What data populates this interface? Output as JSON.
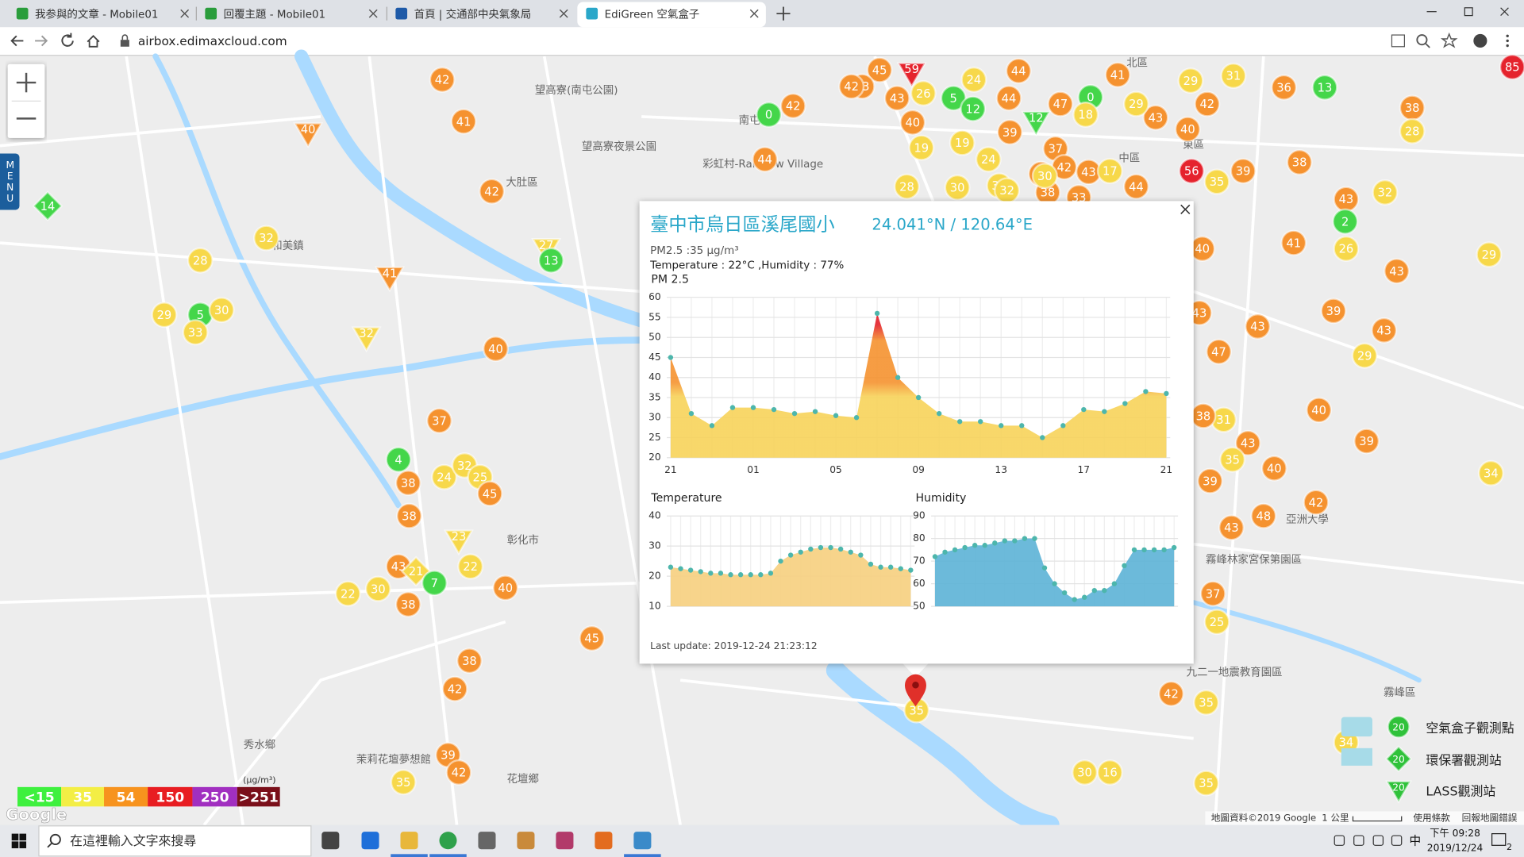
{
  "browser": {
    "tabs": [
      "我参與的文章 - Mobile01",
      "回覆主題 - Mobile01",
      "首頁 | 交通部中央氣象局",
      "EdiGreen 空氣盒子"
    ],
    "url": "airbox.edimaxcloud.com"
  },
  "map": {
    "menu": "MENU",
    "places": [
      "大肚區",
      "和美鎮",
      "彰化市",
      "花壇鄉",
      "秀水鄉",
      "望高寮(南屯公園)",
      "望高寮夜景公園",
      "彩虹村-Rainbow Village",
      "中區",
      "東區",
      "北區",
      "霧峰區",
      "九二一地震教育園區",
      "霧峰林家宮保第園區",
      "亞洲大學",
      "茉莉花壇夢想館",
      "南屯"
    ],
    "markers": [
      {
        "value": 42,
        "color": "#f5922f"
      },
      {
        "value": 41,
        "color": "#f5922f"
      },
      {
        "value": 40,
        "color": "#f5922f",
        "shape": "triangle"
      },
      {
        "value": 14,
        "color": "#44d64a",
        "shape": "diamond"
      },
      {
        "value": 42,
        "color": "#f5922f"
      },
      {
        "value": 32,
        "color": "#f7d84a"
      },
      {
        "value": 28,
        "color": "#f7d84a"
      },
      {
        "value": 27,
        "color": "#f7d84a",
        "shape": "triangle"
      },
      {
        "value": 13,
        "color": "#44d64a"
      },
      {
        "value": 41,
        "color": "#f5922f",
        "shape": "triangle"
      },
      {
        "value": 29,
        "color": "#f7d84a"
      },
      {
        "value": 5,
        "color": "#44d64a"
      },
      {
        "value": 30,
        "color": "#f7d84a"
      },
      {
        "value": 33,
        "color": "#f7d84a"
      },
      {
        "value": 32,
        "color": "#f7d84a",
        "shape": "triangle"
      },
      {
        "value": 40,
        "color": "#f5922f"
      },
      {
        "value": 37,
        "color": "#f5922f"
      },
      {
        "value": 4,
        "color": "#44d64a"
      },
      {
        "value": 38,
        "color": "#f5922f"
      },
      {
        "value": 24,
        "color": "#f7d84a"
      },
      {
        "value": 32,
        "color": "#f7d84a"
      },
      {
        "value": 25,
        "color": "#f7d84a"
      },
      {
        "value": 45,
        "color": "#f5922f"
      },
      {
        "value": 38,
        "color": "#f5922f"
      },
      {
        "value": 23,
        "color": "#f7d84a",
        "shape": "triangle"
      },
      {
        "value": 22,
        "color": "#f7d84a"
      },
      {
        "value": 43,
        "color": "#f5922f"
      },
      {
        "value": 21,
        "color": "#f7d84a",
        "shape": "diamond"
      },
      {
        "value": 7,
        "color": "#44d64a"
      },
      {
        "value": 40,
        "color": "#f5922f"
      },
      {
        "value": 22,
        "color": "#f7d84a"
      },
      {
        "value": 30,
        "color": "#f7d84a"
      },
      {
        "value": 38,
        "color": "#f5922f"
      },
      {
        "value": 45,
        "color": "#f5922f"
      },
      {
        "value": 38,
        "color": "#f5922f"
      },
      {
        "value": 42,
        "color": "#f5922f"
      },
      {
        "value": 39,
        "color": "#f5922f"
      },
      {
        "value": 42,
        "color": "#f5922f"
      },
      {
        "value": 35,
        "color": "#f7d84a"
      },
      {
        "value": 0,
        "color": "#44d64a"
      },
      {
        "value": 42,
        "color": "#f5922f"
      },
      {
        "value": 44,
        "color": "#f5922f"
      },
      {
        "value": 59,
        "color": "#e5232d",
        "shape": "triangle"
      },
      {
        "value": 45,
        "color": "#f5922f"
      },
      {
        "value": 43,
        "color": "#f5922f"
      },
      {
        "value": 43,
        "color": "#f5922f"
      },
      {
        "value": 26,
        "color": "#f7d84a"
      },
      {
        "value": 5,
        "color": "#44d64a"
      },
      {
        "value": 12,
        "color": "#44d64a"
      },
      {
        "value": 24,
        "color": "#f7d84a"
      },
      {
        "value": 44,
        "color": "#f5922f"
      },
      {
        "value": 44,
        "color": "#f5922f"
      },
      {
        "value": 47,
        "color": "#f5922f"
      },
      {
        "value": 0,
        "color": "#44d64a"
      },
      {
        "value": 41,
        "color": "#f5922f"
      },
      {
        "value": 18,
        "color": "#f7d84a"
      },
      {
        "value": 12,
        "color": "#44d64a",
        "shape": "triangle"
      },
      {
        "value": 40,
        "color": "#f5922f"
      },
      {
        "value": 19,
        "color": "#f7d84a"
      },
      {
        "value": 19,
        "color": "#f7d84a"
      },
      {
        "value": 39,
        "color": "#f5922f"
      },
      {
        "value": 37,
        "color": "#f5922f"
      },
      {
        "value": 24,
        "color": "#f7d84a"
      },
      {
        "value": 42,
        "color": "#f5922f"
      },
      {
        "value": 42,
        "color": "#f5922f"
      },
      {
        "value": 43,
        "color": "#f5922f"
      },
      {
        "value": 17,
        "color": "#f7d84a"
      },
      {
        "value": 44,
        "color": "#f5922f"
      },
      {
        "value": 38,
        "color": "#f5922f"
      },
      {
        "value": 30,
        "color": "#f7d84a"
      },
      {
        "value": 32,
        "color": "#f7d84a"
      },
      {
        "value": 30,
        "color": "#f7d84a"
      },
      {
        "value": 28,
        "color": "#f7d84a"
      },
      {
        "value": 33,
        "color": "#f5922f"
      },
      {
        "value": 32,
        "color": "#f7d84a"
      },
      {
        "value": 29,
        "color": "#f7d84a"
      },
      {
        "value": 31,
        "color": "#f7d84a"
      },
      {
        "value": 42,
        "color": "#f5922f"
      },
      {
        "value": 43,
        "color": "#f5922f"
      },
      {
        "value": 29,
        "color": "#f7d84a"
      },
      {
        "value": 40,
        "color": "#f5922f"
      },
      {
        "value": 36,
        "color": "#f5922f"
      },
      {
        "value": 13,
        "color": "#44d64a"
      },
      {
        "value": 38,
        "color": "#f5922f"
      },
      {
        "value": 28,
        "color": "#f7d84a"
      },
      {
        "value": 38,
        "color": "#f5922f"
      },
      {
        "value": 56,
        "color": "#e5232d"
      },
      {
        "value": 35,
        "color": "#f7d84a"
      },
      {
        "value": 39,
        "color": "#f5922f"
      },
      {
        "value": 43,
        "color": "#f5922f"
      },
      {
        "value": 32,
        "color": "#f7d84a"
      },
      {
        "value": 2,
        "color": "#44d64a"
      },
      {
        "value": 41,
        "color": "#f5922f"
      },
      {
        "value": 26,
        "color": "#f7d84a"
      },
      {
        "value": 43,
        "color": "#f5922f"
      },
      {
        "value": 29,
        "color": "#f7d84a"
      },
      {
        "value": 40,
        "color": "#f5922f"
      },
      {
        "value": 39,
        "color": "#f5922f"
      },
      {
        "value": 43,
        "color": "#f5922f"
      },
      {
        "value": 43,
        "color": "#f5922f"
      },
      {
        "value": 43,
        "color": "#f5922f"
      },
      {
        "value": 47,
        "color": "#f5922f"
      },
      {
        "value": 29,
        "color": "#f7d84a"
      },
      {
        "value": 40,
        "color": "#f5922f"
      },
      {
        "value": 31,
        "color": "#f7d84a"
      },
      {
        "value": 38,
        "color": "#f5922f"
      },
      {
        "value": 39,
        "color": "#f5922f"
      },
      {
        "value": 43,
        "color": "#f5922f"
      },
      {
        "value": 35,
        "color": "#f7d84a"
      },
      {
        "value": 40,
        "color": "#f5922f"
      },
      {
        "value": 34,
        "color": "#f7d84a"
      },
      {
        "value": 39,
        "color": "#f5922f"
      },
      {
        "value": 42,
        "color": "#f5922f"
      },
      {
        "value": 48,
        "color": "#f5922f"
      },
      {
        "value": 43,
        "color": "#f5922f"
      },
      {
        "value": 37,
        "color": "#f5922f"
      },
      {
        "value": 25,
        "color": "#f7d84a"
      },
      {
        "value": 42,
        "color": "#f5922f"
      },
      {
        "value": 35,
        "color": "#f7d84a"
      },
      {
        "value": 30,
        "color": "#f7d84a"
      },
      {
        "value": 16,
        "color": "#f7d84a"
      },
      {
        "value": 35,
        "color": "#f7d84a"
      },
      {
        "value": 34,
        "color": "#f7d84a"
      },
      {
        "value": 35,
        "color": "#f7d84a"
      },
      {
        "value": 85,
        "color": "#e5232d"
      },
      {
        "value": 42,
        "color": "#f5922f"
      }
    ],
    "attribution": "地圖資料©2019 Google",
    "scale": "1 公里",
    "terms": "使用條款",
    "report": "回報地圖錯誤",
    "logo": "Google"
  },
  "legend": {
    "levels": [
      {
        "label": "<15",
        "color": "#3ef03e"
      },
      {
        "label": 35,
        "color": "#f3ee45"
      },
      {
        "label": 54,
        "color": "#f7931e"
      },
      {
        "label": 150,
        "color": "#e81d22"
      },
      {
        "label": 250,
        "color": "#a12fc0"
      },
      {
        "label": ">251",
        "color": "#7a0f1a"
      }
    ],
    "unit": "(μg/m³)"
  },
  "station_legend": {
    "items": [
      {
        "label": "空氣盒子觀測點",
        "icon": 20,
        "shape": "circle"
      },
      {
        "label": "環保署觀測站",
        "icon": 20,
        "shape": "diamond"
      },
      {
        "label": "LASS觀測站",
        "icon": 20,
        "shape": "triangle"
      }
    ],
    "color": "#2fc23a"
  },
  "popup": {
    "title": "臺中市烏日區溪尾國小",
    "coords": "24.041°N / 120.64°E",
    "pm": "PM2.5 :35 μg/m³",
    "weather": "Temperature : 22°C ,Humidity : 77%",
    "updated": "Last update: 2019-12-24 21:23:12"
  },
  "chart_data": [
    {
      "type": "area",
      "title": "PM 2.5",
      "categories": [
        "21",
        null,
        null,
        null,
        "01",
        null,
        null,
        null,
        "05",
        null,
        null,
        null,
        "09",
        null,
        null,
        null,
        "13",
        null,
        null,
        null,
        "17",
        null,
        null,
        null,
        "21"
      ],
      "values": [
        45,
        31,
        28,
        32.5,
        32.5,
        32,
        31,
        31.5,
        30.5,
        30,
        56,
        40,
        35,
        31,
        29,
        29,
        28,
        28,
        25,
        28,
        32,
        31.5,
        33.5,
        36.5,
        36
      ],
      "ylim": [
        20,
        60
      ],
      "yticks": [
        20,
        25,
        30,
        35,
        40,
        45,
        50,
        55,
        60
      ],
      "color": "#4db6ac",
      "fill": [
        "#f7d35a",
        "#f5922f",
        "#e3202a"
      ],
      "grid": true
    },
    {
      "type": "area",
      "title": "Temperature",
      "values": [
        23,
        22.5,
        22,
        21.5,
        21,
        21,
        20.5,
        20.5,
        20.5,
        20.5,
        21,
        25,
        27,
        28,
        29,
        29.5,
        29.5,
        29,
        28,
        27,
        24,
        23,
        23,
        22.5,
        22
      ],
      "ylim": [
        10,
        40
      ],
      "yticks": [
        10,
        20,
        30,
        40
      ],
      "color": "#4db6ac",
      "fill": "#f6cf7e",
      "grid": true
    },
    {
      "type": "area",
      "title": "Humidity",
      "values": [
        72,
        74,
        75,
        76,
        77,
        77,
        78,
        79,
        79,
        80,
        80,
        67,
        60,
        56,
        53,
        54,
        57,
        57,
        60,
        68,
        75,
        75,
        75,
        75,
        76
      ],
      "ylim": [
        50,
        90
      ],
      "yticks": [
        50,
        60,
        70,
        80,
        90
      ],
      "color": "#4db6ac",
      "fill": "#5cb3d6",
      "grid": true
    }
  ],
  "taskbar": {
    "search": "在這裡輸入文字來搜尋",
    "time": "下午 09:28",
    "date": "2019/12/24",
    "ime": "中",
    "notifications": 2
  }
}
